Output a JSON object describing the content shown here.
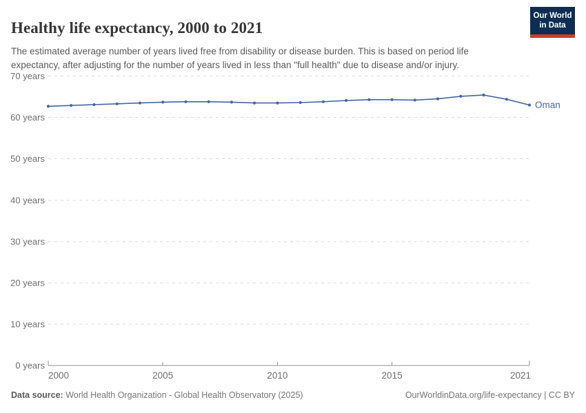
{
  "header": {
    "title": "Healthy life expectancy, 2000 to 2021",
    "subtitle": "The estimated average number of years lived free from disability or disease burden. This is based on period life expectancy, after adjusting for the number of years lived in less than \"full health\" due to disease and/or injury.",
    "logo_line1": "Our World",
    "logo_line2": "in Data"
  },
  "colors": {
    "series_line": "#4565a0",
    "grid": "#d9d9d9",
    "axis": "#8f8f8f",
    "tick_label": "#6e6e6e",
    "logo_bg": "#0d2d52",
    "logo_bar": "#d4382b"
  },
  "chart_data": {
    "type": "line",
    "title": "Healthy life expectancy, 2000 to 2021",
    "xlabel": "",
    "ylabel": "",
    "xlim": [
      2000,
      2021
    ],
    "ylim": [
      0,
      70
    ],
    "x_ticks": [
      2000,
      2005,
      2010,
      2015,
      2021
    ],
    "y_ticks": [
      0,
      10,
      20,
      30,
      40,
      50,
      60,
      70
    ],
    "y_tick_suffix": " years",
    "grid": "horizontal-dashed",
    "legend_position": "end-of-line-label",
    "series": [
      {
        "name": "Oman",
        "color": "#4565a0",
        "x": [
          2000,
          2001,
          2002,
          2003,
          2004,
          2005,
          2006,
          2007,
          2008,
          2009,
          2010,
          2011,
          2012,
          2013,
          2014,
          2015,
          2016,
          2017,
          2018,
          2019,
          2020,
          2021
        ],
        "values": [
          62.7,
          62.9,
          63.1,
          63.3,
          63.5,
          63.7,
          63.8,
          63.8,
          63.7,
          63.5,
          63.5,
          63.6,
          63.8,
          64.1,
          64.3,
          64.3,
          64.2,
          64.5,
          65.1,
          65.4,
          64.4,
          63.0
        ]
      }
    ]
  },
  "footer": {
    "datasource_label": "Data source:",
    "datasource_text": " World Health Organization - Global Health Observatory (2025)",
    "link": "OurWorldinData.org/life-expectancy | CC BY"
  }
}
